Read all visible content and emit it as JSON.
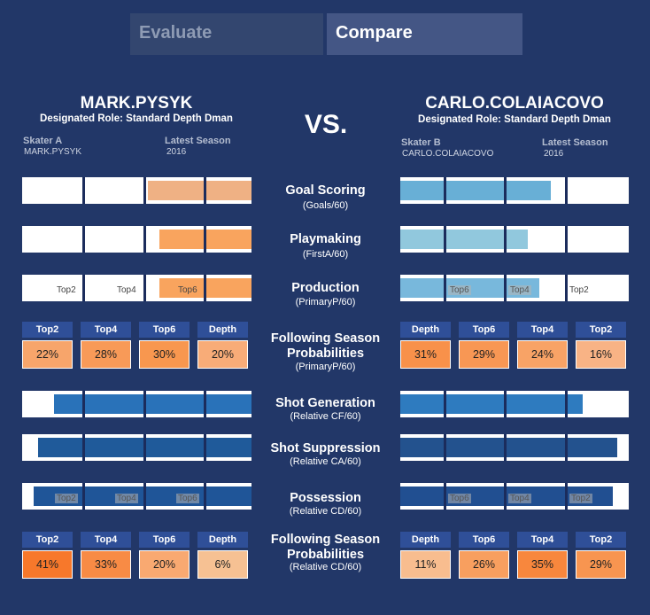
{
  "tabs": {
    "evaluate": "Evaluate",
    "compare": "Compare"
  },
  "vs": "VS.",
  "player_a": {
    "name": "MARK.PYSYK",
    "role": "Designated Role: Standard Depth Dman",
    "skater_label": "Skater A",
    "skater_value": "MARK.PYSYK",
    "season_label": "Latest Season",
    "season_value": "2016"
  },
  "player_b": {
    "name": "CARLO.COLAIACOVO",
    "role": "Designated Role: Standard Depth Dman",
    "skater_label": "Skater B",
    "skater_value": "CARLO.COLAIACOVO",
    "season_label": "Latest Season",
    "season_value": "2016"
  },
  "metrics": {
    "goal_scoring": {
      "title": "Goal Scoring",
      "sub": "(Goals/60)"
    },
    "playmaking": {
      "title": "Playmaking",
      "sub": "(FirstA/60)"
    },
    "production": {
      "title": "Production",
      "sub": "(PrimaryP/60)"
    },
    "prob1": {
      "title1": "Following Season",
      "title2": "Probabilities",
      "sub": "(PrimaryP/60)"
    },
    "shot_generation": {
      "title": "Shot Generation",
      "sub": "(Relative CF/60)"
    },
    "shot_suppression": {
      "title": "Shot Suppression",
      "sub": "(Relative CA/60)"
    },
    "possession": {
      "title": "Possession",
      "sub": "(Relative CD/60)"
    },
    "prob2": {
      "title1": "Following Season",
      "title2": "Probabilities",
      "sub": "(Relative CD/60)"
    }
  },
  "tier_labels": {
    "top2": "Top2",
    "top4": "Top4",
    "top6": "Top6",
    "depth": "Depth"
  },
  "prob_a1": [
    {
      "head": "Top2",
      "value": "22%",
      "color": "#f7a56b"
    },
    {
      "head": "Top4",
      "value": "28%",
      "color": "#f89a58"
    },
    {
      "head": "Top6",
      "value": "30%",
      "color": "#f8974f"
    },
    {
      "head": "Depth",
      "value": "20%",
      "color": "#f8ac78"
    }
  ],
  "prob_b1": [
    {
      "head": "Depth",
      "value": "31%",
      "color": "#f8914a"
    },
    {
      "head": "Top6",
      "value": "29%",
      "color": "#f89754"
    },
    {
      "head": "Top4",
      "value": "24%",
      "color": "#f8a366"
    },
    {
      "head": "Top2",
      "value": "16%",
      "color": "#f8b385"
    }
  ],
  "prob_a2": [
    {
      "head": "Top2",
      "value": "41%",
      "color": "#f7782b"
    },
    {
      "head": "Top4",
      "value": "33%",
      "color": "#f88b45"
    },
    {
      "head": "Top6",
      "value": "20%",
      "color": "#f9a971"
    },
    {
      "head": "Depth",
      "value": "6%",
      "color": "#f6c193"
    }
  ],
  "prob_b2": [
    {
      "head": "Depth",
      "value": "11%",
      "color": "#f8bd8f"
    },
    {
      "head": "Top6",
      "value": "26%",
      "color": "#f89f5f"
    },
    {
      "head": "Top4",
      "value": "35%",
      "color": "#f8873d"
    },
    {
      "head": "Top2",
      "value": "29%",
      "color": "#f89550"
    }
  ],
  "bars": {
    "a_goal": {
      "fill_fraction": 0.45,
      "color": "#efb184"
    },
    "a_play": {
      "fill_fraction": 0.4,
      "color": "#f9a45e"
    },
    "a_prod": {
      "fill_fraction": 0.4,
      "color": "#f9a45e"
    },
    "b_goal": {
      "fill_fraction": 0.66,
      "color": "#68afd6"
    },
    "b_play": {
      "fill_fraction": 0.56,
      "color": "#91c8dd"
    },
    "b_prod": {
      "fill_fraction": 0.61,
      "color": "#78b8dc"
    },
    "a_shotgen": {
      "fill_fraction": 0.86,
      "color": "#2972b9"
    },
    "a_shotsup": {
      "fill_fraction": 0.93,
      "color": "#1f5a9a"
    },
    "a_poss": {
      "fill_fraction": 0.95,
      "color": "#1f5598"
    },
    "b_shotgen": {
      "fill_fraction": 0.8,
      "color": "#2e7bbf"
    },
    "b_shotsup": {
      "fill_fraction": 0.95,
      "color": "#23528e"
    },
    "b_poss": {
      "fill_fraction": 0.93,
      "color": "#214f91"
    }
  }
}
